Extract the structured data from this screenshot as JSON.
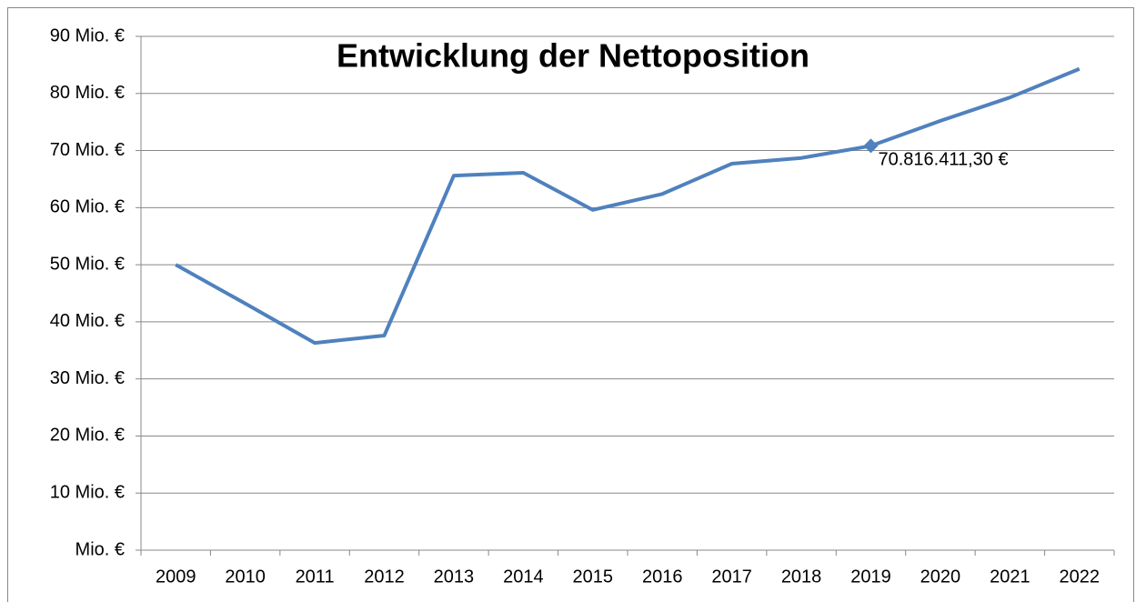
{
  "chart_data": {
    "type": "line",
    "title": "Entwicklung der Nettoposition",
    "categories": [
      "2009",
      "2010",
      "2011",
      "2012",
      "2013",
      "2014",
      "2015",
      "2016",
      "2017",
      "2018",
      "2019",
      "2020",
      "2021",
      "2022"
    ],
    "series": [
      {
        "name": "Nettoposition",
        "color": "#4f81bd",
        "values": [
          50.0,
          43.2,
          36.3,
          37.6,
          65.6,
          66.1,
          59.6,
          62.4,
          67.7,
          68.7,
          70.8164113,
          75.2,
          79.3,
          84.3
        ],
        "value_labels": [
          null,
          null,
          null,
          null,
          null,
          null,
          null,
          null,
          null,
          null,
          "70.816.411,30 €",
          null,
          null,
          null
        ]
      }
    ],
    "ylim": [
      0,
      90
    ],
    "yticks": [
      {
        "value": 0,
        "label": "Mio. €"
      },
      {
        "value": 10,
        "label": "10 Mio. €"
      },
      {
        "value": 20,
        "label": "20 Mio. €"
      },
      {
        "value": 30,
        "label": "30 Mio. €"
      },
      {
        "value": 40,
        "label": "40 Mio. €"
      },
      {
        "value": 50,
        "label": "50 Mio. €"
      },
      {
        "value": 60,
        "label": "60 Mio. €"
      },
      {
        "value": 70,
        "label": "70 Mio. €"
      },
      {
        "value": 80,
        "label": "80 Mio. €"
      },
      {
        "value": 90,
        "label": "90 Mio. €"
      }
    ],
    "grid": true
  }
}
